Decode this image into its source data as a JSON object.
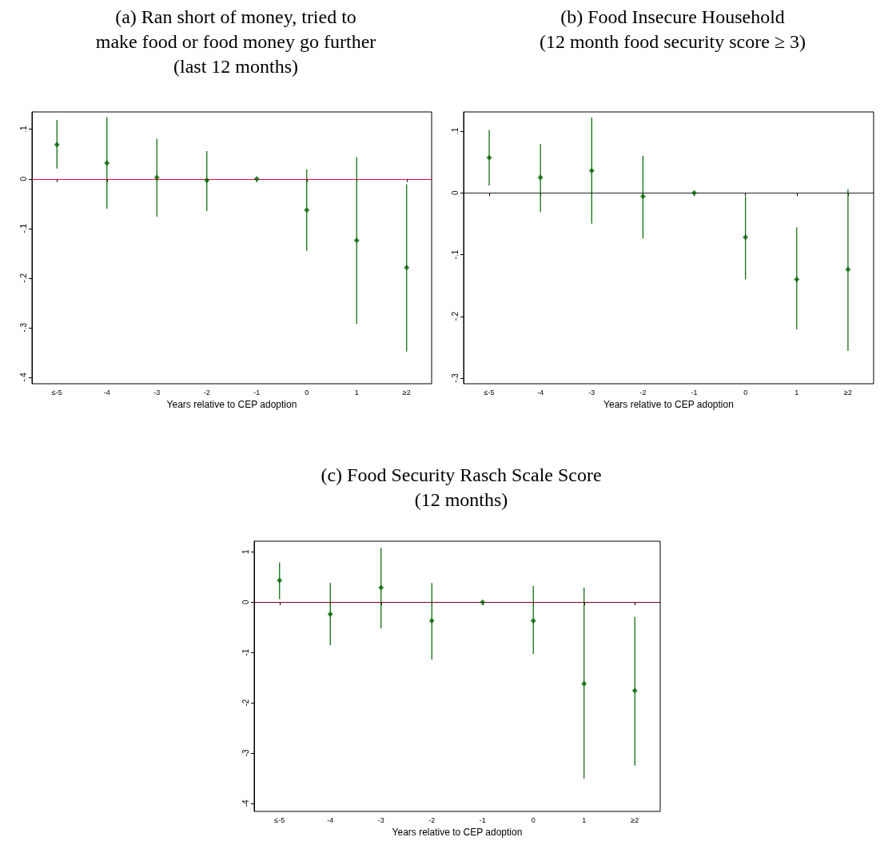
{
  "chart_data": [
    {
      "type": "scatter",
      "title": "(a) Ran short of money, tried to\nmake food or food money go further\n(last 12 months)",
      "xlabel": "Years relative to CEP adoption",
      "categories": [
        "≤-5",
        "-4",
        "-3",
        "-2",
        "-1",
        "0",
        "1",
        "≥2"
      ],
      "marker": "diamond",
      "ylim": [
        -0.413,
        0.135
      ],
      "yticks": [
        {
          "value": -0.4,
          "label": "-.4"
        },
        {
          "value": -0.3,
          "label": "-.3"
        },
        {
          "value": -0.2,
          "label": "-.2"
        },
        {
          "value": -0.1,
          "label": "-.1"
        },
        0,
        {
          "value": 0.1,
          "label": ".1"
        }
      ],
      "series": [
        {
          "color": "#006400",
          "values": [
            0.069,
            0.032,
            0.003,
            -0.003,
            0,
            -0.063,
            -0.124,
            -0.179
          ],
          "errors": [
            [
              0.021,
              0.119
            ],
            [
              -0.06,
              0.124
            ],
            [
              -0.076,
              0.081
            ],
            [
              -0.065,
              0.056
            ],
            null,
            [
              -0.145,
              0.019
            ],
            [
              -0.292,
              0.044
            ],
            [
              -0.348,
              -0.011
            ]
          ]
        }
      ],
      "ref_lines": [
        {
          "axis": "y",
          "value": 0,
          "color": "#d0103a"
        }
      ]
    },
    {
      "type": "scatter",
      "title": "(b) Food Insecure Household\n(12 month food security score ≥ 3)",
      "xlabel": "Years relative to CEP adoption",
      "categories": [
        "≤-5",
        "-4",
        "-3",
        "-2",
        "-1",
        "0",
        "1",
        "≥2"
      ],
      "marker": "diamond",
      "ylim": [
        -0.309,
        0.131
      ],
      "yticks": [
        {
          "value": -0.3,
          "label": "-.3"
        },
        {
          "value": -0.2,
          "label": "-.2"
        },
        {
          "value": -0.1,
          "label": "-.1"
        },
        0,
        {
          "value": 0.1,
          "label": ".1"
        }
      ],
      "series": [
        {
          "color": "#006400",
          "values": [
            0.057,
            0.025,
            0.036,
            -0.006,
            0,
            -0.072,
            -0.14,
            -0.124
          ],
          "errors": [
            [
              0.012,
              0.102
            ],
            [
              -0.031,
              0.079
            ],
            [
              -0.05,
              0.122
            ],
            [
              -0.074,
              0.06
            ],
            null,
            [
              -0.14,
              -0.006
            ],
            [
              -0.221,
              -0.056
            ],
            [
              -0.256,
              0.006
            ]
          ]
        }
      ],
      "ref_lines": [
        {
          "axis": "y",
          "value": 0,
          "color": "#222222"
        }
      ]
    },
    {
      "type": "scatter",
      "title": "(c) Food Security Rasch Scale Score\n(12 months)",
      "xlabel": "Years relative to CEP adoption",
      "categories": [
        "≤-5",
        "-4",
        "-3",
        "-2",
        "-1",
        "0",
        "1",
        "≥2"
      ],
      "marker": "diamond",
      "ylim": [
        -4.16,
        1.21
      ],
      "yticks": [
        -4,
        -3,
        -2,
        -1,
        0,
        1
      ],
      "series": [
        {
          "color": "#006400",
          "values": [
            0.43,
            -0.24,
            0.29,
            -0.37,
            0,
            -0.37,
            -1.62,
            -1.76
          ],
          "errors": [
            [
              0.06,
              0.79
            ],
            [
              -0.86,
              0.38
            ],
            [
              -0.52,
              1.08
            ],
            [
              -1.14,
              0.38
            ],
            null,
            [
              -1.03,
              0.32
            ],
            [
              -3.51,
              0.29
            ],
            [
              -3.25,
              -0.29
            ]
          ]
        }
      ],
      "ref_lines": [
        {
          "axis": "y",
          "value": 0,
          "color": "#800020"
        }
      ]
    }
  ]
}
